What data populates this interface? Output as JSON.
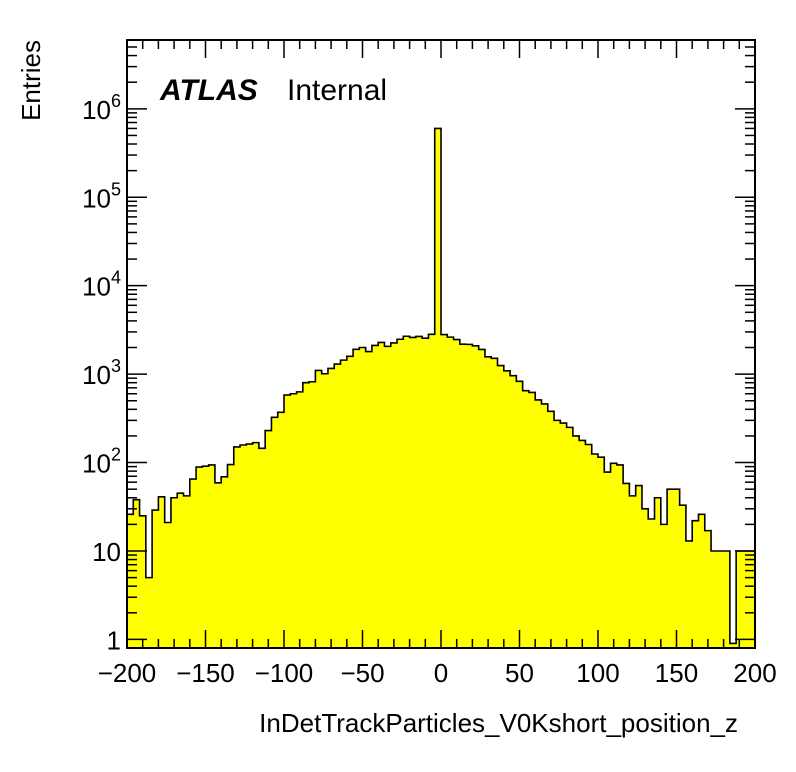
{
  "chart_data": {
    "type": "bar",
    "style": "histogram",
    "fill_color": "#ffff00",
    "line_color": "#000000",
    "xlabel": "InDetTrackParticles_V0Kshort_position_z",
    "ylabel": "Entries",
    "xlim": [
      -200,
      200
    ],
    "ylim": [
      0.8,
      6000000
    ],
    "yscale": "log",
    "grid": false,
    "legend": "none",
    "annotation": {
      "bold": "ATLAS",
      "normal": "Internal"
    },
    "x_ticks": [
      {
        "value": -200,
        "label": "−200"
      },
      {
        "value": -150,
        "label": "−150"
      },
      {
        "value": -100,
        "label": "−100"
      },
      {
        "value": -50,
        "label": "−50"
      },
      {
        "value": 0,
        "label": "0"
      },
      {
        "value": 50,
        "label": "50"
      },
      {
        "value": 100,
        "label": "100"
      },
      {
        "value": 150,
        "label": "150"
      },
      {
        "value": 200,
        "label": "200"
      }
    ],
    "y_ticks": [
      {
        "value": 1,
        "base": "1",
        "exp": ""
      },
      {
        "value": 10,
        "base": "10",
        "exp": ""
      },
      {
        "value": 100,
        "base": "10",
        "exp": "2"
      },
      {
        "value": 1000,
        "base": "10",
        "exp": "3"
      },
      {
        "value": 10000,
        "base": "10",
        "exp": "4"
      },
      {
        "value": 100000,
        "base": "10",
        "exp": "5"
      },
      {
        "value": 1000000,
        "base": "10",
        "exp": "6"
      }
    ],
    "bin_edges_start": -200,
    "bin_width": 4,
    "values": [
      26,
      38,
      25,
      5,
      29,
      41,
      21,
      40,
      45,
      42,
      65,
      89,
      91,
      94,
      59,
      69,
      95,
      150,
      158,
      162,
      168,
      145,
      230,
      325,
      370,
      580,
      600,
      630,
      800,
      820,
      1100,
      1010,
      1160,
      1300,
      1440,
      1590,
      1910,
      2000,
      1800,
      2110,
      2280,
      2060,
      2250,
      2480,
      2680,
      2600,
      2670,
      2550,
      2820,
      600000,
      2800,
      2620,
      2460,
      2180,
      2170,
      2090,
      1900,
      1570,
      1510,
      1250,
      1090,
      960,
      830,
      650,
      620,
      510,
      460,
      380,
      300,
      280,
      250,
      200,
      178,
      160,
      125,
      115,
      78,
      98,
      94,
      58,
      42,
      55,
      30,
      23,
      40,
      20,
      50,
      50,
      33,
      13,
      22,
      26,
      17,
      10,
      10,
      10,
      0.9,
      10,
      10,
      10
    ]
  }
}
